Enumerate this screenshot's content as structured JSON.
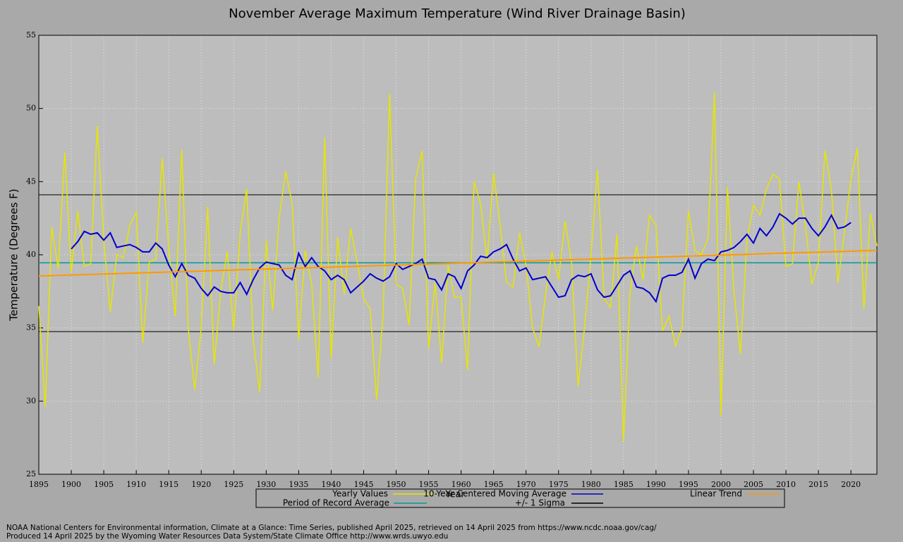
{
  "chart_data": {
    "type": "line",
    "title": "November Average Maximum Temperature (Wind River Drainage Basin)",
    "x_label": "Year",
    "y_label": "Temperature (Degrees F)",
    "x": [
      1895,
      1896,
      1897,
      1898,
      1899,
      1900,
      1901,
      1902,
      1903,
      1904,
      1905,
      1906,
      1907,
      1908,
      1909,
      1910,
      1911,
      1912,
      1913,
      1914,
      1915,
      1916,
      1917,
      1918,
      1919,
      1920,
      1921,
      1922,
      1923,
      1924,
      1925,
      1926,
      1927,
      1928,
      1929,
      1930,
      1931,
      1932,
      1933,
      1934,
      1935,
      1936,
      1937,
      1938,
      1939,
      1940,
      1941,
      1942,
      1943,
      1944,
      1945,
      1946,
      1947,
      1948,
      1949,
      1950,
      1951,
      1952,
      1953,
      1954,
      1955,
      1956,
      1957,
      1958,
      1959,
      1960,
      1961,
      1962,
      1963,
      1964,
      1965,
      1966,
      1967,
      1968,
      1969,
      1970,
      1971,
      1972,
      1973,
      1974,
      1975,
      1976,
      1977,
      1978,
      1979,
      1980,
      1981,
      1982,
      1983,
      1984,
      1985,
      1986,
      1987,
      1988,
      1989,
      1990,
      1991,
      1992,
      1993,
      1994,
      1995,
      1996,
      1997,
      1998,
      1999,
      2000,
      2001,
      2002,
      2003,
      2004,
      2005,
      2006,
      2007,
      2008,
      2009,
      2010,
      2011,
      2012,
      2013,
      2014,
      2015,
      2016,
      2017,
      2018,
      2019,
      2020,
      2021,
      2022,
      2023,
      2024
    ],
    "series": [
      {
        "name": "Yearly Values",
        "color": "#e6e600",
        "values": [
          36.5,
          29.6,
          41.9,
          39.0,
          47.0,
          38.8,
          43.0,
          39.2,
          39.4,
          48.8,
          41.0,
          36.1,
          40.0,
          39.8,
          42.0,
          42.9,
          34.0,
          39.5,
          39.7,
          46.6,
          40.5,
          35.8,
          47.2,
          35.0,
          30.8,
          35.0,
          43.3,
          32.5,
          37.5,
          40.2,
          34.8,
          41.5,
          44.5,
          34.2,
          30.6,
          41.0,
          36.2,
          42.5,
          45.7,
          43.5,
          34.2,
          40.3,
          38.0,
          31.6,
          48.0,
          32.9,
          41.2,
          37.3,
          41.8,
          39.5,
          37.0,
          36.3,
          30.1,
          36.0,
          51.0,
          38.0,
          37.7,
          35.2,
          45.2,
          47.1,
          33.6,
          38.1,
          32.6,
          39.3,
          37.1,
          37.1,
          32.1,
          45.0,
          43.5,
          39.6,
          45.6,
          42.0,
          38.1,
          37.8,
          41.5,
          39.3,
          35.0,
          33.7,
          37.3,
          40.2,
          38.3,
          42.3,
          39.5,
          31.0,
          35.0,
          40.0,
          45.8,
          37.0,
          36.4,
          41.4,
          27.2,
          37.4,
          40.6,
          38.3,
          42.7,
          42.0,
          34.8,
          35.8,
          33.8,
          35.0,
          43.0,
          40.3,
          40.0,
          41.1,
          51.1,
          29.0,
          44.6,
          37.5,
          33.2,
          41.0,
          43.4,
          42.7,
          44.5,
          45.5,
          45.2,
          39.2,
          39.4,
          45.0,
          42.0,
          38.0,
          39.5,
          47.1,
          44.5,
          38.1,
          41.5,
          45.2,
          47.3,
          36.3,
          42.8,
          40.6
        ]
      },
      {
        "name": "10-Year Centered Moving Average",
        "color": "#0000cc",
        "values": [
          null,
          null,
          null,
          null,
          null,
          40.4,
          40.9,
          41.6,
          41.4,
          41.5,
          41.0,
          41.5,
          40.5,
          40.6,
          40.7,
          40.5,
          40.2,
          40.2,
          40.8,
          40.4,
          39.3,
          38.5,
          39.4,
          38.6,
          38.4,
          37.7,
          37.2,
          37.8,
          37.5,
          37.4,
          37.4,
          38.1,
          37.3,
          38.3,
          39.1,
          39.5,
          39.4,
          39.3,
          38.6,
          38.3,
          40.1,
          39.2,
          39.8,
          39.2,
          38.9,
          38.3,
          38.6,
          38.3,
          37.4,
          37.8,
          38.2,
          38.7,
          38.4,
          38.2,
          38.5,
          39.4,
          39.0,
          39.2,
          39.4,
          39.7,
          38.4,
          38.3,
          37.6,
          38.7,
          38.5,
          37.7,
          38.9,
          39.3,
          39.9,
          39.8,
          40.2,
          40.4,
          40.7,
          39.7,
          38.9,
          39.1,
          38.3,
          38.4,
          38.5,
          37.8,
          37.1,
          37.2,
          38.3,
          38.6,
          38.5,
          38.7,
          37.6,
          37.1,
          37.2,
          37.9,
          38.6,
          38.9,
          37.8,
          37.7,
          37.4,
          36.8,
          38.4,
          38.6,
          38.6,
          38.8,
          39.7,
          38.4,
          39.4,
          39.7,
          39.6,
          40.2,
          40.3,
          40.5,
          40.9,
          41.4,
          40.8,
          41.8,
          41.3,
          41.9,
          42.8,
          42.5,
          42.1,
          42.5,
          42.5,
          41.8,
          41.3,
          41.9,
          42.7,
          41.8,
          41.9,
          42.2,
          null,
          null,
          null,
          null
        ]
      },
      {
        "name": "Linear Trend",
        "color": "#ff9900",
        "x": [
          1895,
          2024
        ],
        "values": [
          38.55,
          40.3
        ]
      }
    ],
    "average": {
      "name": "Period of Record Average",
      "color": "#009999",
      "value": 39.45
    },
    "sigma": {
      "name": "+/- 1 Sigma",
      "color": "#000000",
      "values": [
        44.1,
        34.75
      ]
    },
    "xlim": [
      1895,
      2024
    ],
    "xticks": [
      1895,
      1900,
      1905,
      1910,
      1915,
      1920,
      1925,
      1930,
      1935,
      1940,
      1945,
      1950,
      1955,
      1960,
      1965,
      1970,
      1975,
      1980,
      1985,
      1990,
      1995,
      2000,
      2005,
      2010,
      2015,
      2020
    ],
    "ylim": [
      25,
      55
    ],
    "yticks": [
      25,
      30,
      35,
      40,
      45,
      50,
      55
    ],
    "grid": true,
    "legend": "bottom",
    "footer": [
      "NOAA National Centers for Environmental information, Climate at a Glance: Time Series, published April 2025, retrieved on 14 April 2025 from https://www.ncdc.noaa.gov/cag/",
      "Produced 14 April 2025 by the Wyoming Water Resources Data System/State Climate Office http://www.wrds.uwyo.edu"
    ]
  }
}
